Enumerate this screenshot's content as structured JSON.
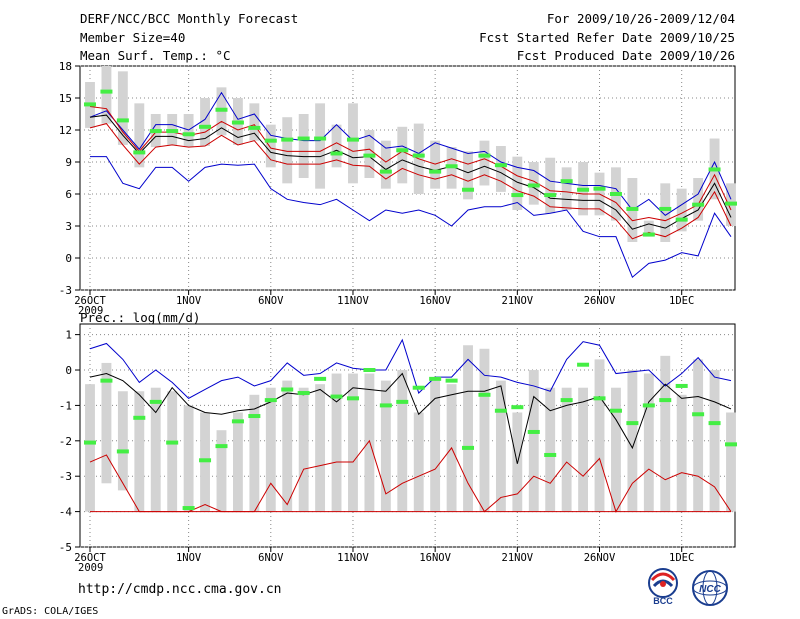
{
  "header": {
    "title": "DERF/NCC/BCC Monthly Forecast",
    "member_size": "Member Size=40",
    "variable": "Mean Surf. Temp.: °C",
    "period": "For 2009/10/26-2009/12/04",
    "fcst_started": "Fcst Started Refer Date 2009/10/25",
    "fcst_produced": "Fcst Produced Date 2009/10/26"
  },
  "precip_label": "Prec.: log(mm/d)",
  "footer": {
    "url": "http://cmdp.ncc.cma.gov.cn",
    "grads": "GrADS: COLA/IGES",
    "bcc_logo_text": "BCC",
    "ncc_logo_text": "NCC"
  },
  "colors": {
    "max_line": "#0000cc",
    "min_line": "#0000cc",
    "quartile_line": "#cc0000",
    "mean_line": "#000000",
    "bar": "#d3d3d3",
    "marker": "#44ee44"
  },
  "chart_data": [
    {
      "type": "box-plume",
      "title": "Mean Surf. Temp.: °C",
      "ylim": [
        -3,
        18
      ],
      "yticks": [
        -3,
        0,
        3,
        6,
        9,
        12,
        15,
        18
      ],
      "x_tick_labels": [
        "26OCT",
        "1NOV",
        "6NOV",
        "11NOV",
        "16NOV",
        "21NOV",
        "26NOV",
        "1DEC"
      ],
      "x_tick_days": [
        1,
        7,
        12,
        17,
        22,
        27,
        32,
        37
      ],
      "year_label": "2009",
      "days": [
        1,
        2,
        3,
        4,
        5,
        6,
        7,
        8,
        9,
        10,
        11,
        12,
        13,
        14,
        15,
        16,
        17,
        18,
        19,
        20,
        21,
        22,
        23,
        24,
        25,
        26,
        27,
        28,
        29,
        30,
        31,
        32,
        33,
        34,
        35,
        36,
        37,
        38,
        39,
        40
      ],
      "series": [
        {
          "name": "max",
          "values": [
            13.2,
            13.8,
            12.0,
            10.2,
            12.5,
            12.5,
            12.0,
            13.0,
            15.5,
            13.0,
            13.5,
            11.5,
            11.2,
            11.0,
            11.0,
            12.5,
            11.0,
            11.5,
            10.3,
            10.5,
            9.8,
            10.8,
            10.3,
            9.8,
            10.0,
            9.0,
            8.5,
            8.2,
            7.2,
            7.0,
            6.8,
            6.8,
            6.5,
            4.5,
            5.5,
            4.0,
            5.0,
            6.0,
            9.0,
            5.5
          ]
        },
        {
          "name": "q75",
          "values": [
            14.2,
            14.0,
            11.8,
            10.0,
            11.8,
            11.8,
            11.5,
            11.8,
            12.8,
            12.0,
            12.5,
            10.3,
            10.0,
            10.0,
            10.0,
            10.8,
            10.0,
            10.2,
            9.0,
            10.0,
            9.3,
            8.8,
            9.3,
            8.8,
            9.3,
            8.6,
            7.7,
            7.2,
            6.3,
            6.2,
            6.0,
            6.0,
            5.2,
            3.5,
            3.8,
            3.5,
            4.2,
            5.0,
            7.8,
            4.5
          ]
        },
        {
          "name": "mean",
          "values": [
            13.2,
            13.4,
            11.5,
            9.8,
            11.4,
            11.4,
            11.0,
            11.2,
            12.2,
            11.3,
            11.7,
            9.9,
            9.6,
            9.5,
            9.5,
            10.1,
            9.4,
            9.5,
            8.3,
            9.2,
            8.6,
            8.2,
            8.6,
            8.0,
            8.6,
            8.0,
            7.1,
            6.6,
            5.6,
            5.5,
            5.4,
            5.4,
            4.5,
            2.7,
            3.2,
            2.8,
            3.7,
            4.5,
            7.0,
            3.8
          ]
        },
        {
          "name": "q25",
          "values": [
            12.2,
            12.6,
            10.6,
            8.8,
            10.4,
            10.6,
            10.4,
            10.5,
            11.5,
            10.6,
            11.0,
            9.2,
            8.8,
            8.8,
            8.8,
            9.2,
            8.7,
            8.6,
            7.4,
            8.4,
            7.8,
            7.4,
            7.8,
            7.2,
            7.8,
            7.2,
            6.3,
            5.8,
            4.8,
            4.7,
            4.6,
            4.6,
            3.6,
            1.8,
            2.4,
            2.0,
            2.8,
            3.8,
            6.2,
            3.0
          ]
        },
        {
          "name": "min",
          "values": [
            9.5,
            9.5,
            7.0,
            6.5,
            8.5,
            8.5,
            7.2,
            8.5,
            8.8,
            8.7,
            8.8,
            6.5,
            5.5,
            5.2,
            5.0,
            5.5,
            4.5,
            3.5,
            4.5,
            4.2,
            4.5,
            4.0,
            3.0,
            4.5,
            4.8,
            4.8,
            5.2,
            4.0,
            4.2,
            4.5,
            2.5,
            2.0,
            2.0,
            -1.8,
            -0.5,
            -0.2,
            0.5,
            0.2,
            4.2,
            2.0
          ]
        },
        {
          "name": "bar_top",
          "values": [
            16.5,
            18.0,
            17.5,
            14.5,
            13.5,
            13.5,
            13.5,
            15.0,
            16.0,
            15.0,
            14.5,
            12.5,
            13.2,
            13.5,
            14.5,
            12.5,
            14.5,
            12.0,
            11.0,
            12.3,
            12.6,
            11.0,
            10.4,
            10.0,
            11.0,
            10.5,
            9.5,
            9.0,
            9.4,
            8.5,
            9.0,
            8.0,
            8.5,
            7.5,
            3.5,
            7.0,
            6.5,
            7.5,
            11.2,
            7.0
          ]
        },
        {
          "name": "bar_bottom",
          "values": [
            12.2,
            12.6,
            10.6,
            8.5,
            10.4,
            10.6,
            10.4,
            10.5,
            11.5,
            10.6,
            11.0,
            8.5,
            7.0,
            7.5,
            6.5,
            8.5,
            7.0,
            7.5,
            6.5,
            7.0,
            6.0,
            6.5,
            6.5,
            5.5,
            6.8,
            6.2,
            4.5,
            5.0,
            4.2,
            4.5,
            4.0,
            4.0,
            3.5,
            1.5,
            2.0,
            1.5,
            2.5,
            3.5,
            5.5,
            3.0
          ]
        },
        {
          "name": "marker",
          "values": [
            14.4,
            15.6,
            12.9,
            9.9,
            11.9,
            11.9,
            11.6,
            12.3,
            13.9,
            12.7,
            12.2,
            11.0,
            11.1,
            11.2,
            11.2,
            9.8,
            11.1,
            9.6,
            8.1,
            10.1,
            9.6,
            8.1,
            8.6,
            6.4,
            9.6,
            8.7,
            5.9,
            6.8,
            5.9,
            7.2,
            6.4,
            6.5,
            6.0,
            4.6,
            2.2,
            4.6,
            3.6,
            5.0,
            8.3,
            5.1
          ]
        }
      ]
    },
    {
      "type": "box-plume",
      "title": "Prec.: log(mm/d)",
      "ylim": [
        -5,
        1.3
      ],
      "yticks": [
        -5,
        -4,
        -3,
        -2,
        -1,
        0,
        1
      ],
      "x_tick_labels": [
        "26OCT",
        "1NOV",
        "6NOV",
        "11NOV",
        "16NOV",
        "21NOV",
        "26NOV",
        "1DEC"
      ],
      "x_tick_days": [
        1,
        7,
        12,
        17,
        22,
        27,
        32,
        37
      ],
      "year_label": "2009",
      "days": [
        1,
        2,
        3,
        4,
        5,
        6,
        7,
        8,
        9,
        10,
        11,
        12,
        13,
        14,
        15,
        16,
        17,
        18,
        19,
        20,
        21,
        22,
        23,
        24,
        25,
        26,
        27,
        28,
        29,
        30,
        31,
        32,
        33,
        34,
        35,
        36,
        37,
        38,
        39,
        40
      ],
      "series": [
        {
          "name": "max",
          "values": [
            0.6,
            0.75,
            0.3,
            -0.35,
            0.0,
            -0.35,
            -0.8,
            -0.55,
            -0.3,
            -0.2,
            -0.45,
            -0.3,
            0.2,
            -0.15,
            -0.1,
            0.2,
            0.05,
            0.0,
            0.0,
            0.85,
            -0.65,
            -0.2,
            -0.2,
            0.3,
            -0.15,
            -0.2,
            -0.35,
            -0.45,
            -0.6,
            0.3,
            0.8,
            0.7,
            -0.1,
            -0.05,
            0.0,
            -0.45,
            -0.1,
            0.35,
            -0.2,
            -0.3
          ]
        },
        {
          "name": "mean",
          "values": [
            -0.2,
            -0.1,
            -0.3,
            -0.7,
            -1.2,
            -0.5,
            -1.0,
            -1.2,
            -1.25,
            -1.15,
            -1.1,
            -0.9,
            -0.65,
            -0.7,
            -0.55,
            -0.9,
            -0.5,
            -0.55,
            -0.6,
            -0.1,
            -1.25,
            -0.8,
            -0.7,
            -0.6,
            -0.6,
            -0.45,
            -2.65,
            -0.75,
            -1.15,
            -1.0,
            -0.9,
            -0.75,
            -1.4,
            -2.2,
            -0.9,
            -0.4,
            -0.8,
            -0.75,
            -0.9,
            -1.1
          ]
        },
        {
          "name": "min_wet",
          "values": [
            -2.6,
            -2.4,
            -3.2,
            -4.0,
            -4.0,
            -4.0,
            -4.0,
            -3.8,
            -4.0,
            -4.0,
            -4.0,
            -3.2,
            -3.8,
            -2.8,
            -2.7,
            -2.6,
            -2.6,
            -2.0,
            -3.5,
            -3.2,
            -3.0,
            -2.8,
            -2.2,
            -3.2,
            -4.0,
            -3.6,
            -3.5,
            -3.0,
            -3.2,
            -2.6,
            -3.0,
            -2.5,
            -4.0,
            -3.2,
            -2.8,
            -3.1,
            -2.9,
            -3.0,
            -3.3,
            -4.0
          ]
        },
        {
          "name": "bar_top",
          "values": [
            -0.4,
            0.2,
            -0.6,
            -0.6,
            -0.5,
            -0.6,
            -1.0,
            -1.2,
            -1.7,
            -1.2,
            -0.7,
            -0.5,
            -0.3,
            -0.5,
            -0.4,
            -0.1,
            -0.1,
            -0.1,
            -0.3,
            0.0,
            -1.2,
            -0.3,
            -0.4,
            0.7,
            0.6,
            -0.3,
            -1.2,
            0.0,
            -0.5,
            -0.5,
            -0.5,
            0.3,
            -0.5,
            0.0,
            -0.1,
            0.4,
            -0.7,
            0.3,
            0.0,
            -1.2
          ]
        },
        {
          "name": "bar_bottom",
          "values": [
            -4.0,
            -3.2,
            -3.4,
            -4.0,
            -4.0,
            -4.0,
            -4.0,
            -4.0,
            -4.0,
            -4.0,
            -4.0,
            -4.0,
            -4.0,
            -4.0,
            -4.0,
            -4.0,
            -4.0,
            -4.0,
            -4.0,
            -4.0,
            -4.0,
            -4.0,
            -4.0,
            -4.0,
            -4.0,
            -4.0,
            -4.0,
            -4.0,
            -4.0,
            -4.0,
            -4.0,
            -4.0,
            -4.0,
            -4.0,
            -4.0,
            -4.0,
            -4.0,
            -4.0,
            -4.0,
            -4.0
          ]
        },
        {
          "name": "marker",
          "values": [
            -2.05,
            -0.3,
            -2.3,
            -1.35,
            -0.9,
            -2.05,
            -3.9,
            -2.55,
            -2.15,
            -1.45,
            -1.3,
            -0.85,
            -0.55,
            -0.65,
            -0.25,
            -0.75,
            -0.8,
            0.0,
            -1.0,
            -0.9,
            -0.5,
            -0.25,
            -0.3,
            -2.2,
            -0.7,
            -1.15,
            -1.05,
            -1.75,
            -2.4,
            -0.85,
            0.15,
            -0.8,
            -1.15,
            -1.5,
            -1.0,
            -0.85,
            -0.45,
            -1.25,
            -1.5,
            -2.1
          ]
        }
      ],
      "floor_value": -4
    }
  ]
}
